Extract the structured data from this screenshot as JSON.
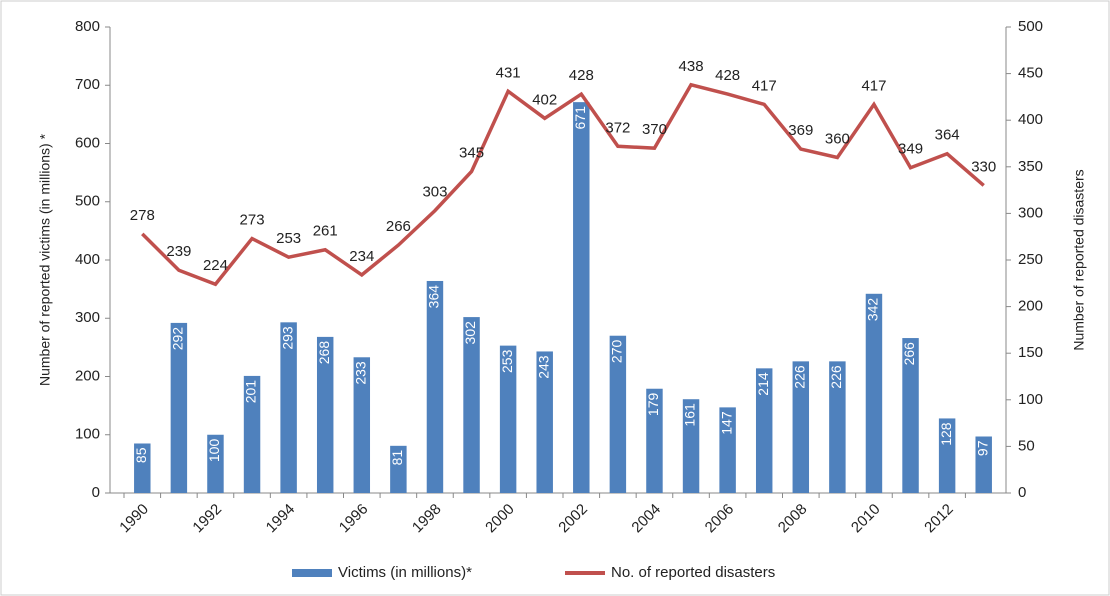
{
  "chart_data": {
    "type": "bar-line",
    "categories": [
      "1990",
      null,
      "1992",
      null,
      "1994",
      null,
      "1996",
      null,
      "1998",
      null,
      "2000",
      null,
      "2002",
      null,
      "2004",
      null,
      "2006",
      null,
      "2008",
      null,
      "2010",
      null,
      "2012",
      null
    ],
    "series": [
      {
        "name": "Victims (in millions)*",
        "color": "#4f81bd",
        "type": "bar",
        "axis": "y",
        "values": [
          85,
          292,
          100,
          201,
          293,
          268,
          233,
          81,
          364,
          302,
          253,
          243,
          671,
          270,
          179,
          161,
          147,
          214,
          226,
          226,
          342,
          266,
          128,
          97
        ]
      },
      {
        "name": "No. of reported disasters",
        "color": "#c0504d",
        "type": "line",
        "axis": "y2",
        "values": [
          278,
          239,
          224,
          273,
          253,
          261,
          234,
          266,
          303,
          345,
          431,
          402,
          428,
          372,
          370,
          438,
          428,
          417,
          369,
          360,
          417,
          349,
          364,
          330
        ]
      }
    ],
    "ylabel": "Number of reported victims (in millions) *",
    "y2label": "Number of reported disasters",
    "ylim": [
      0,
      800
    ],
    "yticks": [
      0,
      100,
      200,
      300,
      400,
      500,
      600,
      700,
      800
    ],
    "y2lim": [
      0,
      500
    ],
    "y2ticks": [
      0,
      50,
      100,
      150,
      200,
      250,
      300,
      350,
      400,
      450,
      500
    ],
    "legend": "bottom"
  }
}
